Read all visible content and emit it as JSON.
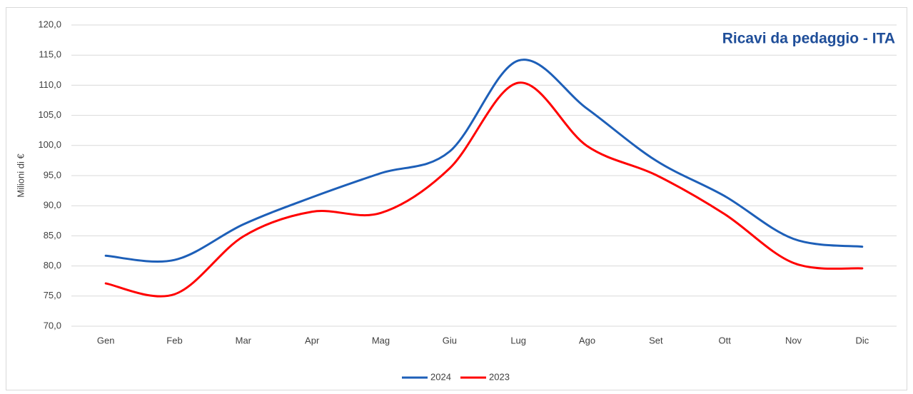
{
  "chart_data": {
    "type": "line",
    "title": "Ricavi da pedaggio - ITA",
    "y_label": "Milioni di €",
    "categories": [
      "Gen",
      "Feb",
      "Mar",
      "Apr",
      "Mag",
      "Giu",
      "Lug",
      "Ago",
      "Set",
      "Ott",
      "Nov",
      "Dic"
    ],
    "series": [
      {
        "name": "2024",
        "color": "#1d5fb8",
        "values": [
          81.7,
          81.0,
          86.9,
          91.4,
          95.4,
          99.0,
          114.1,
          106.1,
          97.5,
          91.6,
          84.5,
          83.2
        ]
      },
      {
        "name": "2023",
        "color": "#ff0000",
        "values": [
          77.1,
          75.3,
          84.9,
          89.0,
          88.8,
          96.2,
          110.4,
          99.9,
          95.1,
          88.6,
          80.5,
          79.6
        ]
      }
    ],
    "ylim": [
      70,
      120
    ],
    "yticks": [
      {
        "value": 70,
        "label": "70,0"
      },
      {
        "value": 75,
        "label": "75,0"
      },
      {
        "value": 80,
        "label": "80,0"
      },
      {
        "value": 85,
        "label": "85,0"
      },
      {
        "value": 90,
        "label": "90,0"
      },
      {
        "value": 95,
        "label": "95,0"
      },
      {
        "value": 100,
        "label": "100,0"
      },
      {
        "value": 105,
        "label": "105,0"
      },
      {
        "value": 110,
        "label": "110,0"
      },
      {
        "value": 115,
        "label": "115,0"
      },
      {
        "value": 120,
        "label": "120,0"
      }
    ],
    "grid": true,
    "smooth": true,
    "legend": "bottom"
  }
}
